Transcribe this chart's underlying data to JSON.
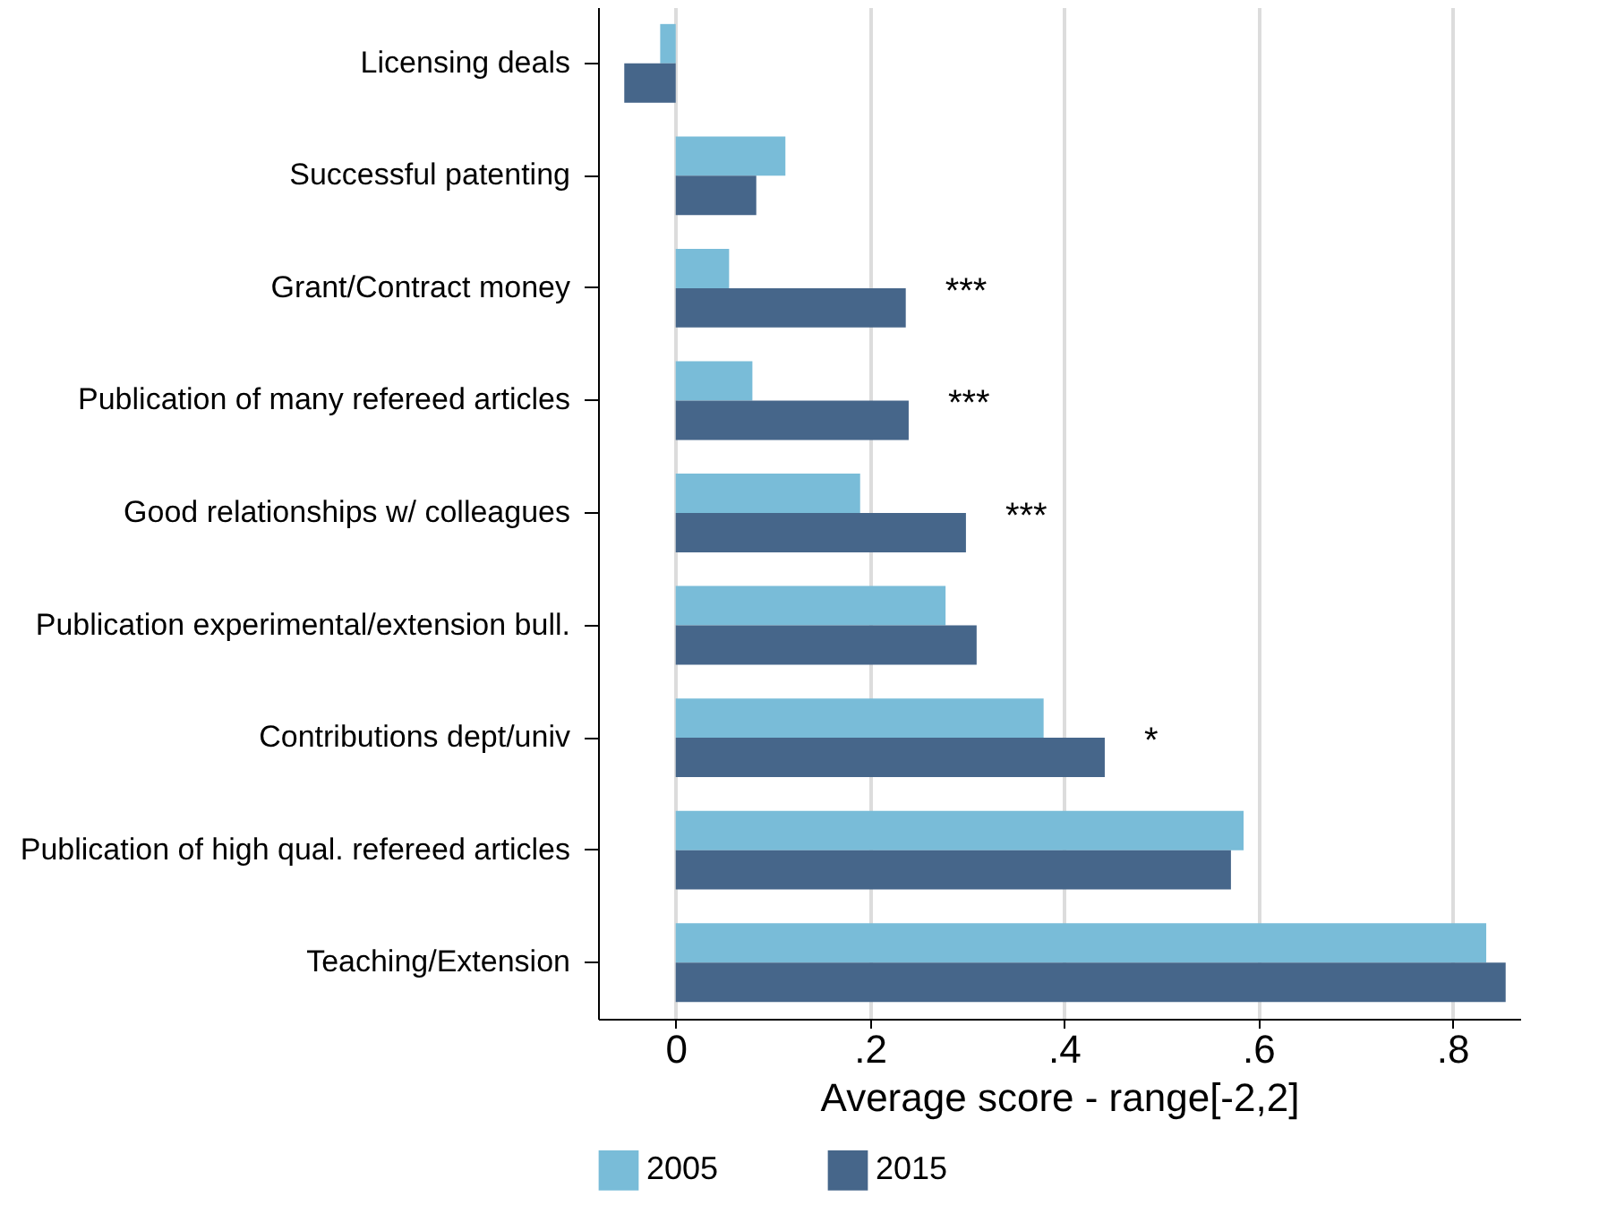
{
  "chart_data": {
    "type": "bar",
    "orientation": "horizontal",
    "xlabel": "Average score - range[-2,2]",
    "categories": [
      "Licensing deals",
      "Successful patenting",
      "Grant/Contract money",
      "Publication of many refereed articles",
      "Good relationships w/ colleagues",
      "Publication experimental/extension bull.",
      "Contributions dept/univ",
      "Publication of high qual. refereed articles",
      "Teaching/Extension"
    ],
    "series": [
      {
        "name": "2005",
        "color": "#79bcd8",
        "values": [
          -0.016,
          0.113,
          0.055,
          0.079,
          0.19,
          0.278,
          0.379,
          0.585,
          0.835
        ]
      },
      {
        "name": "2015",
        "color": "#46668a",
        "values": [
          -0.053,
          0.083,
          0.237,
          0.24,
          0.299,
          0.31,
          0.442,
          0.572,
          0.855
        ]
      }
    ],
    "xlim": [
      -0.08,
      0.87
    ],
    "xticks": [
      0,
      {
        "value": 0.2,
        "label": ".2"
      },
      {
        "value": 0.4,
        "label": ".4"
      },
      {
        "value": 0.6,
        "label": ".6"
      },
      {
        "value": 0.8,
        "label": ".8"
      }
    ],
    "annotations": [
      {
        "text": "***",
        "x": 0.237,
        "y": "Grant/Contract money"
      },
      {
        "text": "***",
        "x": 0.24,
        "y": "Publication of many refereed articles"
      },
      {
        "text": "***",
        "x": 0.299,
        "y": "Good relationships w/ colleagues"
      },
      {
        "text": "*",
        "x": 0.442,
        "y": "Contributions dept/univ"
      }
    ],
    "grid": "x",
    "legend": "bottom"
  }
}
